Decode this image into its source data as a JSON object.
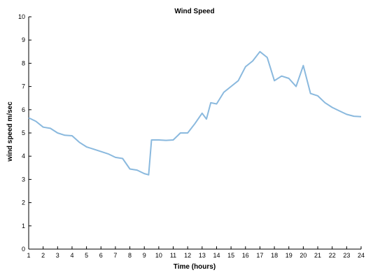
{
  "chart_data": {
    "type": "line",
    "title": "Wind Speed",
    "xlabel": "Time (hours)",
    "ylabel": "wind speed m/sec",
    "xlim": [
      1,
      24
    ],
    "ylim": [
      0,
      10
    ],
    "x_ticks": [
      "1",
      "2",
      "3",
      "4",
      "5",
      "6",
      "7",
      "8",
      "9",
      "10",
      "11",
      "12",
      "13",
      "14",
      "15",
      "16",
      "17",
      "18",
      "19",
      "20",
      "21",
      "22",
      "23",
      "24"
    ],
    "y_ticks": [
      "0",
      "1",
      "2",
      "3",
      "4",
      "5",
      "6",
      "7",
      "8",
      "9",
      "10"
    ],
    "grid": false,
    "line_color": "#8ab9de",
    "series": [
      {
        "x": [
          1,
          1.5,
          2,
          2.5,
          3,
          3.5,
          4,
          4.5,
          5,
          5.5,
          6,
          6.5,
          7,
          7.5,
          8,
          8.5,
          9,
          9.3,
          9.5,
          10,
          10.5,
          11,
          11.5,
          12,
          12.5,
          13,
          13.3,
          13.6,
          14,
          14.5,
          15,
          15.5,
          16,
          16.5,
          17,
          17.5,
          18,
          18.5,
          19,
          19.5,
          20,
          20.5,
          21,
          21.5,
          22,
          22.5,
          23,
          23.5,
          24
        ],
        "y": [
          5.65,
          5.5,
          5.25,
          5.2,
          5.0,
          4.9,
          4.88,
          4.6,
          4.4,
          4.3,
          4.2,
          4.1,
          3.95,
          3.9,
          3.45,
          3.4,
          3.25,
          3.2,
          4.7,
          4.7,
          4.68,
          4.7,
          5.0,
          5.0,
          5.4,
          5.85,
          5.6,
          6.3,
          6.25,
          6.75,
          7.0,
          7.25,
          7.85,
          8.1,
          8.5,
          8.25,
          7.25,
          7.45,
          7.35,
          7.0,
          7.9,
          6.7,
          6.6,
          6.3,
          6.1,
          5.95,
          5.8,
          5.72,
          5.7
        ]
      }
    ]
  }
}
